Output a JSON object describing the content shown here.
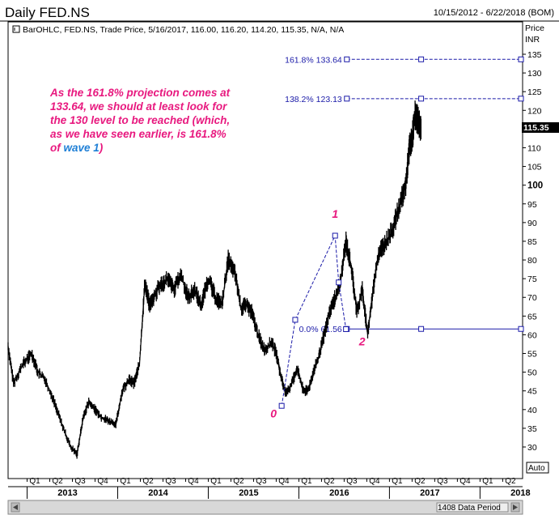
{
  "header": {
    "title": "Daily FED.NS",
    "date_range": "10/15/2012 - 6/22/2018 (BOM)"
  },
  "legend_line": "BarOHLC, FED.NS, Trade Price, 5/16/2017, 116.00, 116.20, 114.20, 115.35, N/A, N/A",
  "axis": {
    "price_label": "Price",
    "currency_label": "INR",
    "auto_label": "Auto",
    "last_price_badge": "115.35",
    "data_period": "1408 Data Period"
  },
  "annotation": {
    "line1": "As the 161.8% projection comes at",
    "line2": "133.64, we should at least look for",
    "line3": "the 130 level to be reached (which,",
    "line4": "as we have seen earlier, is 161.8%",
    "line5_prefix": "of ",
    "line5_link": "wave 1",
    "line5_suffix": ")",
    "color": "#e8197f",
    "link_color": "#1e7fd6"
  },
  "colors": {
    "price_bars": "#000000",
    "fib_lines": "#1a1aa8",
    "wave_labels": "#e8197f",
    "axis": "#000000",
    "footer_bg": "#d8d8d8"
  },
  "chart_data": {
    "type": "line",
    "title": "Daily FED.NS",
    "ylabel": "INR",
    "ylim": [
      25,
      137
    ],
    "y_ticks": [
      30,
      35,
      40,
      45,
      50,
      55,
      60,
      65,
      70,
      75,
      80,
      85,
      90,
      95,
      100,
      105,
      110,
      115,
      120,
      125,
      130,
      135
    ],
    "x_quarters": [
      "Q1",
      "Q2",
      "Q3",
      "Q4",
      "Q1",
      "Q2",
      "Q3",
      "Q4",
      "Q1",
      "Q2",
      "Q3",
      "Q4",
      "Q1",
      "Q2",
      "Q3",
      "Q4",
      "Q1",
      "Q2",
      "Q3",
      "Q4",
      "Q1",
      "Q2"
    ],
    "x_years": [
      "2013",
      "2014",
      "2015",
      "2016",
      "2017",
      "2018"
    ],
    "x_range": [
      2012.79,
      2018.47
    ],
    "series": [
      {
        "x": [
          2012.79,
          2012.85,
          2012.95,
          2013.05,
          2013.12,
          2013.2,
          2013.3,
          2013.4,
          2013.48,
          2013.55,
          2013.62,
          2013.68,
          2013.75,
          2013.82,
          2013.9,
          2013.98,
          2014.05,
          2014.12,
          2014.18,
          2014.24,
          2014.3,
          2014.35,
          2014.4,
          2014.46,
          2014.55,
          2014.62,
          2014.7,
          2014.78,
          2014.85,
          2014.92,
          2015.0,
          2015.08,
          2015.15,
          2015.22,
          2015.3,
          2015.36,
          2015.42,
          2015.48,
          2015.55,
          2015.62,
          2015.7,
          2015.75,
          2015.8,
          2015.86,
          2015.92,
          2015.98,
          2016.05,
          2016.1,
          2016.16,
          2016.22,
          2016.28,
          2016.34,
          2016.4,
          2016.46,
          2016.52,
          2016.58,
          2016.64,
          2016.7,
          2016.76,
          2016.82,
          2016.88,
          2016.94,
          2017.0,
          2017.06,
          2017.12,
          2017.18,
          2017.22,
          2017.25,
          2017.28,
          2017.32,
          2017.35
        ],
        "y": [
          57,
          47,
          52,
          55,
          50,
          48,
          42,
          35,
          30,
          28,
          38,
          42,
          40,
          38,
          37,
          36,
          45,
          48,
          47,
          52,
          74,
          68,
          70,
          73,
          75,
          72,
          76,
          70,
          72,
          68,
          75,
          70,
          68,
          80,
          76,
          67,
          68,
          66,
          60,
          56,
          58,
          55,
          49,
          44,
          47,
          51,
          45,
          45,
          50,
          54,
          60,
          66,
          70,
          74,
          85,
          78,
          66,
          72,
          60,
          72,
          82,
          84,
          86,
          90,
          95,
          100,
          110,
          112,
          119,
          117,
          115.35
        ]
      }
    ],
    "fib_levels": [
      {
        "label": "161.8% 133.64",
        "value": 133.64
      },
      {
        "label": "138.2% 123.13",
        "value": 123.13
      },
      {
        "label": "0.0% 61.56",
        "value": 61.56
      }
    ],
    "waves": [
      {
        "label": "0",
        "x": 2015.81,
        "y": 43.5
      },
      {
        "label": "1",
        "x": 2016.4,
        "y": 86.5
      },
      {
        "label": "2",
        "x": 2016.52,
        "y": 61.5
      }
    ],
    "wave_path": [
      [
        2015.81,
        41
      ],
      [
        2015.96,
        64
      ],
      [
        2016.4,
        86.5
      ],
      [
        2016.44,
        74
      ],
      [
        2016.52,
        61.5
      ]
    ]
  }
}
